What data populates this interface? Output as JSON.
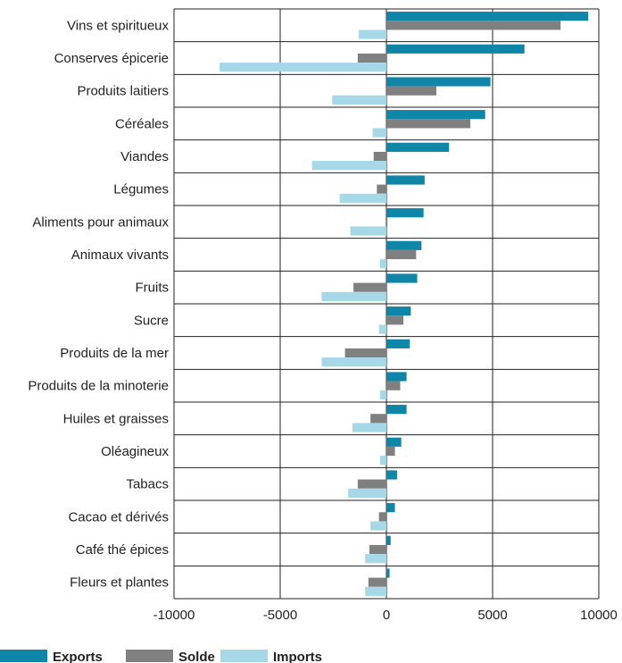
{
  "chart_data": {
    "type": "bar",
    "orientation": "horizontal",
    "categories": [
      "Vins et spiritueux",
      "Conserves épicerie",
      "Produits laitiers",
      "Céréales",
      "Viandes",
      "Légumes",
      "Aliments pour animaux",
      "Animaux vivants",
      "Fruits",
      "Sucre",
      "Produits de la mer",
      "Produits de la minoterie",
      "Huiles et graisses",
      "Oléagineux",
      "Tabacs",
      "Cacao et dérivés",
      "Café thé épices",
      "Fleurs et plantes"
    ],
    "series": [
      {
        "name": "Exports",
        "color": "#0f86a8",
        "values": [
          9500,
          6500,
          4900,
          4650,
          2950,
          1800,
          1750,
          1650,
          1450,
          1150,
          1100,
          950,
          950,
          700,
          500,
          400,
          200,
          150
        ]
      },
      {
        "name": "Solde",
        "color": "#808080",
        "values": [
          8200,
          -1350,
          2350,
          3950,
          -600,
          -450,
          50,
          1400,
          -1550,
          800,
          -1950,
          650,
          -750,
          400,
          -1350,
          -350,
          -800,
          -850
        ]
      },
      {
        "name": "Imports",
        "color": "#a6d8e8",
        "values": [
          -1300,
          -7850,
          -2550,
          -650,
          -3500,
          -2200,
          -1700,
          -300,
          -3050,
          -350,
          -3050,
          -300,
          -1600,
          -300,
          -1800,
          -750,
          -1000,
          -1000
        ]
      }
    ],
    "x_ticks": [
      "-10000",
      "-5000",
      "0",
      "5000",
      "10000"
    ],
    "xlim": [
      -10000,
      10000
    ],
    "title": "",
    "xlabel": "",
    "ylabel": "",
    "grid": true,
    "legend_position": "bottom-left"
  }
}
